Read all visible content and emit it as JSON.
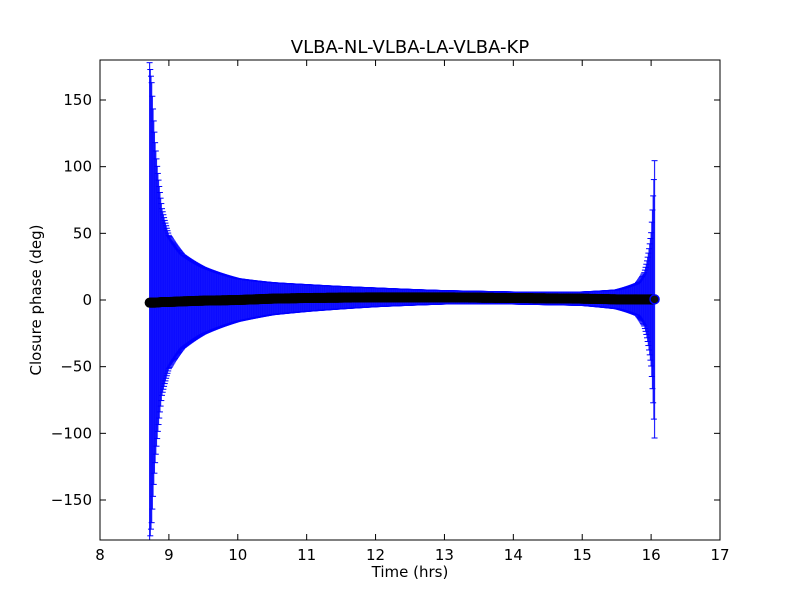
{
  "chart_data": {
    "type": "scatter",
    "title": "VLBA-NL-VLBA-LA-VLBA-KP",
    "xlabel": "Time (hrs)",
    "ylabel": "Closure phase (deg)",
    "xlim": [
      8,
      17
    ],
    "ylim": [
      -180,
      180
    ],
    "xticks": [
      8,
      9,
      10,
      11,
      12,
      13,
      14,
      15,
      16,
      17
    ],
    "xtick_labels": [
      "8",
      "9",
      "10",
      "11",
      "12",
      "13",
      "14",
      "15",
      "16",
      "17"
    ],
    "yticks": [
      -150,
      -100,
      -50,
      0,
      50,
      100,
      150
    ],
    "ytick_labels": [
      "−150",
      "−100",
      "−50",
      "0",
      "50",
      "100",
      "150"
    ],
    "grid": false,
    "error_bars": true,
    "series": [
      {
        "marker_color": "#000000",
        "errorbar_color": "#0000ff",
        "x": [
          8.72,
          8.75,
          8.8,
          8.9,
          9.0,
          9.2,
          9.5,
          10.0,
          10.5,
          11.0,
          12.0,
          13.0,
          14.0,
          15.0,
          15.5,
          15.8,
          15.9,
          16.0,
          16.05
        ],
        "y": [
          -2,
          -2,
          -2,
          -1.5,
          -1.5,
          -1,
          -0.5,
          0,
          1,
          1.5,
          2,
          2,
          1.5,
          1,
          0.5,
          0.5,
          0.5,
          0.5,
          0.5
        ],
        "err": [
          180,
          165,
          120,
          70,
          50,
          35,
          25,
          16,
          12,
          10,
          7,
          5,
          4.5,
          5,
          7,
          12,
          20,
          50,
          104
        ]
      }
    ]
  }
}
